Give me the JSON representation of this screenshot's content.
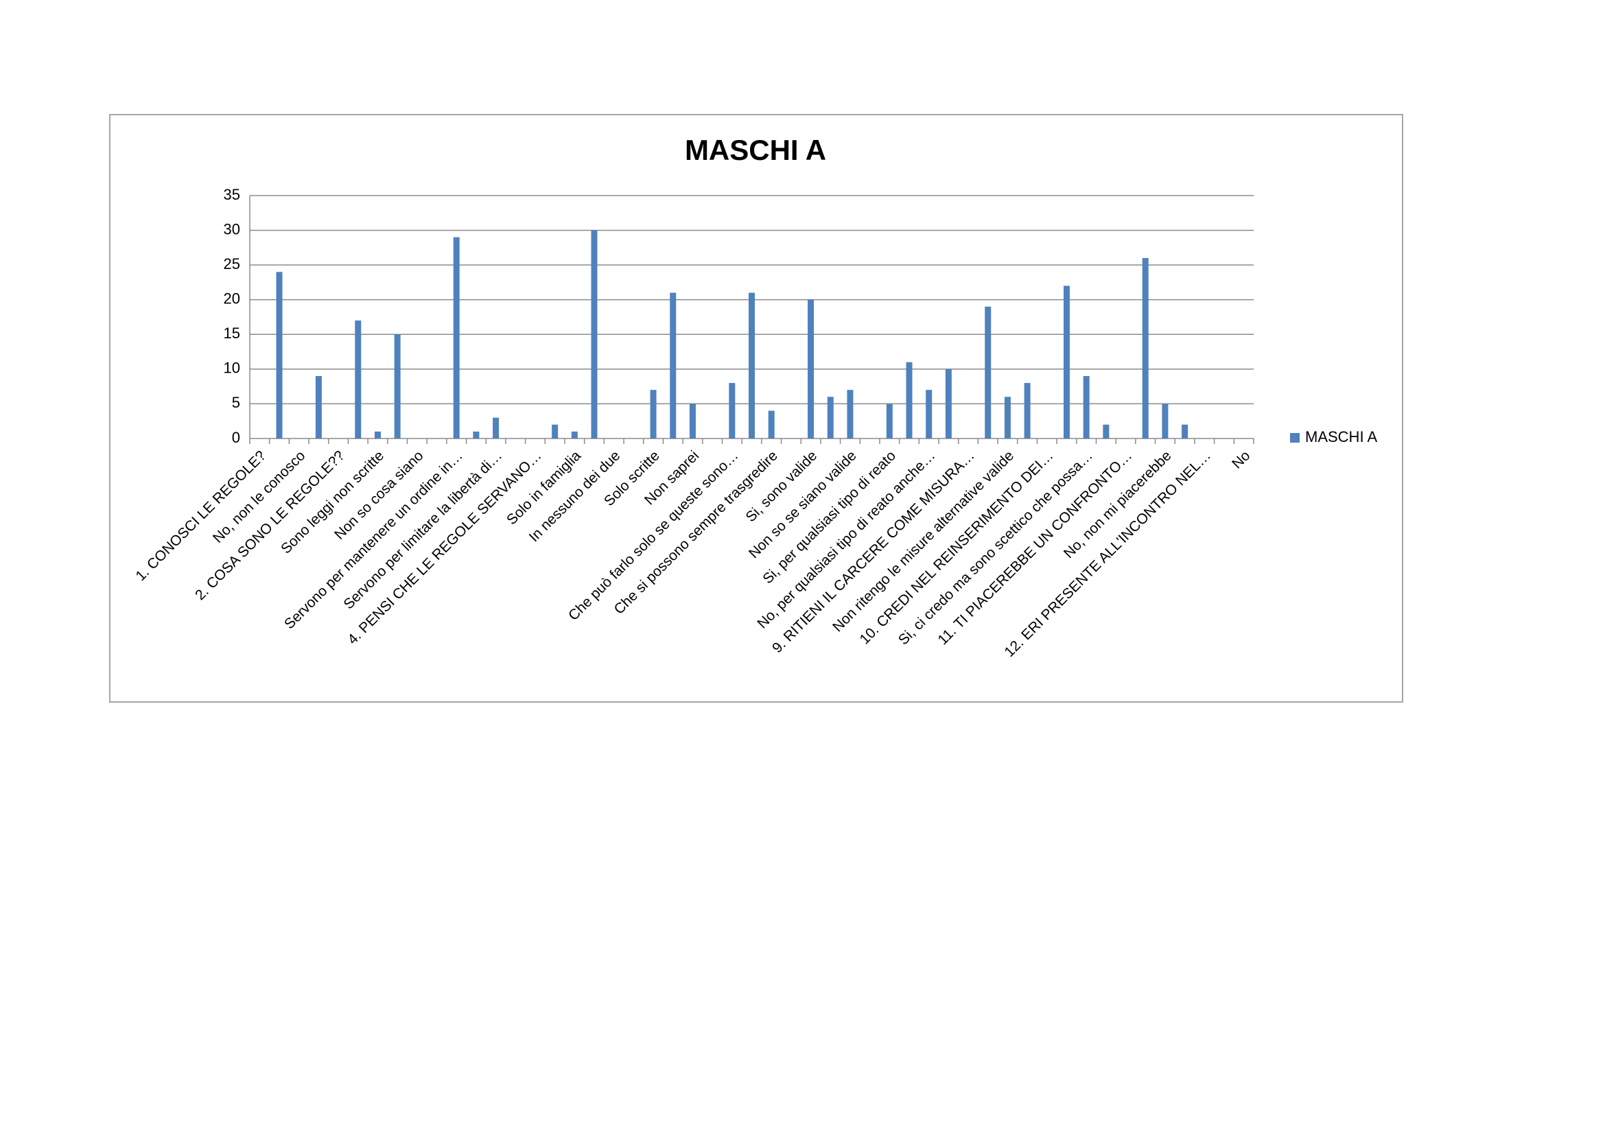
{
  "chart_data": {
    "type": "bar",
    "title": "MASCHI A",
    "categories": [
      "1. CONOSCI LE REGOLE?",
      null,
      "No, non le conosco",
      null,
      "2. COSA SONO LE REGOLE??",
      null,
      "Sono leggi non scritte",
      null,
      "Non so cosa siano",
      null,
      "Servono per mantenere un ordine in…",
      null,
      "Servono per limitare la libertà di…",
      null,
      "4. PENSI CHE LE REGOLE SERVANO…",
      null,
      "Solo in famiglia",
      null,
      "In nessuno dei due",
      null,
      "Solo scritte",
      null,
      "Non saprei",
      null,
      "Che può farlo solo se queste sono…",
      null,
      "Che si possono sempre trasgredire",
      null,
      "Si, sono valide",
      null,
      "Non so se siano valide",
      null,
      "Si, per qualsiasi tipo di reato",
      null,
      "No, per qualsiasi tipo di reato anche…",
      null,
      "9. RITIENI IL CARCERE COME MISURA…",
      null,
      "Non ritengo le misure alternative valide",
      null,
      "10. CREDI NEL REINSERIMENTO DEI…",
      null,
      "Si, ci credo ma sono scettico che possa…",
      null,
      "11. TI PIACEREBBE UN CONFRONTO…",
      null,
      "No, non mi piacerebbe",
      null,
      "12. ERI PRESENTE ALL'INCONTRO NEL…",
      null,
      "No"
    ],
    "series": [
      {
        "name": "MASCHI A",
        "color": "#4f81bd",
        "values": [
          null,
          24,
          null,
          9,
          null,
          17,
          1,
          15,
          null,
          null,
          29,
          1,
          3,
          null,
          null,
          2,
          1,
          30,
          null,
          null,
          7,
          21,
          5,
          null,
          8,
          21,
          4,
          null,
          20,
          6,
          7,
          null,
          5,
          11,
          7,
          10,
          null,
          19,
          6,
          8,
          null,
          22,
          9,
          2,
          null,
          26,
          5,
          2,
          null,
          null,
          null
        ]
      }
    ],
    "ylim": [
      0,
      35
    ],
    "yticks": [
      0,
      5,
      10,
      15,
      20,
      25,
      30,
      35
    ],
    "grid": true,
    "legend": "right"
  }
}
